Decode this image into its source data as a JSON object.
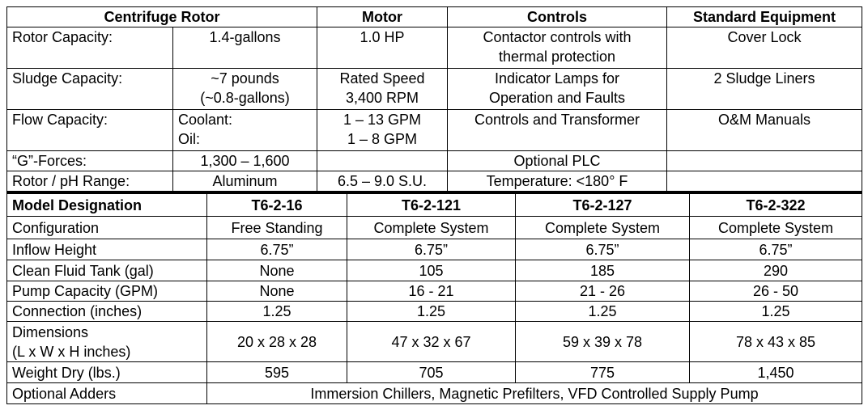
{
  "top": {
    "header": [
      "Centrifuge Rotor",
      "Motor",
      "Controls",
      "Standard Equipment"
    ],
    "rows": [
      [
        "Rotor Capacity:",
        "1.4-gallons",
        "1.0 HP",
        "Contactor controls with\nthermal protection",
        "Cover Lock"
      ],
      [
        "Sludge Capacity:",
        "~7 pounds\n(~0.8-gallons)",
        "Rated Speed\n3,400 RPM",
        "Indicator Lamps for\nOperation and Faults",
        "2 Sludge Liners"
      ],
      [
        "Flow Capacity:",
        "Coolant:\nOil:",
        "1 – 13 GPM\n1 – 8 GPM",
        "Controls and Transformer",
        "O&M Manuals"
      ],
      [
        "“G”-Forces:",
        "1,300 – 1,600",
        null,
        "Optional PLC",
        null
      ],
      [
        "Rotor / pH Range:",
        "Aluminum",
        "6.5 – 9.0 S.U.",
        "Temperature:  <180° F",
        null
      ]
    ]
  },
  "bottom": {
    "header": [
      "Model Designation",
      "T6-2-16",
      "T6-2-121",
      "T6-2-127",
      "T6-2-322"
    ],
    "rows": [
      [
        "Configuration",
        "Free Standing",
        "Complete System",
        "Complete System",
        "Complete System"
      ],
      [
        "Inflow Height",
        "6.75”",
        "6.75”",
        "6.75”",
        "6.75”"
      ],
      [
        "Clean Fluid Tank (gal)",
        "None",
        "105",
        "185",
        "290"
      ],
      [
        "Pump Capacity (GPM)",
        "None",
        "16 - 21",
        "21 - 26",
        "26 - 50"
      ],
      [
        "Connection (inches)",
        "1.25",
        "1.25",
        "1.25",
        "1.25"
      ],
      [
        "Dimensions\n(L x W x H inches)",
        "20 x 28 x 28",
        "47 x 32 x 67",
        "59 x 39 x 78",
        "78 x 43 x 85"
      ],
      [
        "Weight Dry (lbs.)",
        "595",
        "705",
        "775",
        "1,450"
      ],
      [
        "Optional Adders",
        "Immersion Chillers, Magnetic Prefilters, VFD Controlled Supply Pump"
      ]
    ]
  }
}
